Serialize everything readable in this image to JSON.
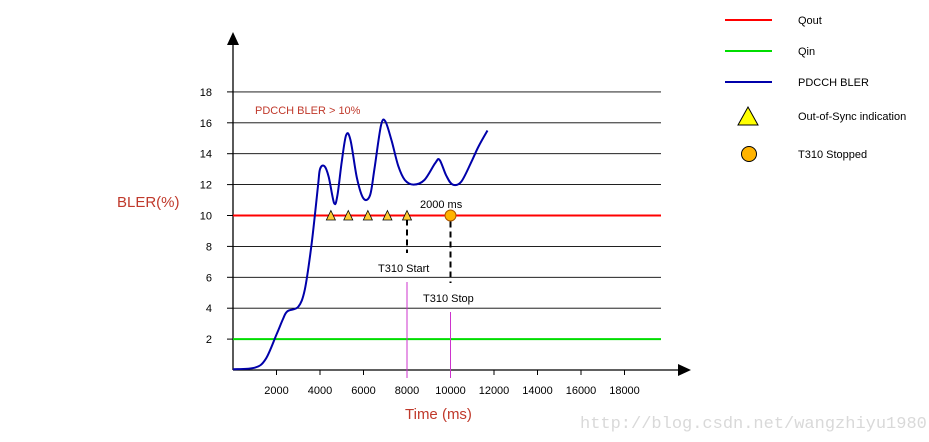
{
  "chart_data": {
    "type": "line",
    "xlabel": "Time (ms)",
    "ylabel": "BLER(%)",
    "x_ticks": [
      2000,
      4000,
      6000,
      8000,
      10000,
      12000,
      14000,
      16000,
      18000
    ],
    "y_ticks": [
      2,
      4,
      6,
      8,
      10,
      12,
      14,
      16,
      18
    ],
    "xlim": [
      0,
      19000
    ],
    "ylim": [
      0,
      19
    ],
    "grid": "horizontal",
    "series": [
      {
        "name": "Qout",
        "color": "#ff0000",
        "style": "horizontal-line",
        "y": 10
      },
      {
        "name": "Qin",
        "color": "#00dd00",
        "style": "horizontal-line",
        "y": 2
      },
      {
        "name": "PDCCH BLER",
        "color": "#0000aa",
        "style": "line",
        "points": [
          [
            0,
            0.05
          ],
          [
            1000,
            0.15
          ],
          [
            1500,
            0.7
          ],
          [
            2000,
            2.3
          ],
          [
            2300,
            3.3
          ],
          [
            2500,
            3.8
          ],
          [
            3000,
            4.1
          ],
          [
            3300,
            5.2
          ],
          [
            3600,
            8.0
          ],
          [
            3900,
            11.8
          ],
          [
            4000,
            13.0
          ],
          [
            4200,
            13.2
          ],
          [
            4400,
            12.5
          ],
          [
            4650,
            10.8
          ],
          [
            4800,
            11.3
          ],
          [
            5000,
            13.5
          ],
          [
            5200,
            15.2
          ],
          [
            5400,
            14.9
          ],
          [
            5700,
            12.4
          ],
          [
            6000,
            11.1
          ],
          [
            6300,
            11.3
          ],
          [
            6500,
            13.0
          ],
          [
            6800,
            15.8
          ],
          [
            7000,
            16.1
          ],
          [
            7300,
            14.8
          ],
          [
            7600,
            13.2
          ],
          [
            7900,
            12.3
          ],
          [
            8300,
            12.0
          ],
          [
            8800,
            12.3
          ],
          [
            9300,
            13.4
          ],
          [
            9500,
            13.6
          ],
          [
            9800,
            12.6
          ],
          [
            10100,
            12.0
          ],
          [
            10500,
            12.2
          ],
          [
            11000,
            13.6
          ],
          [
            11300,
            14.5
          ],
          [
            11700,
            15.5
          ]
        ]
      }
    ],
    "out_of_sync_indications": [
      {
        "x": 4500,
        "y": 10
      },
      {
        "x": 5300,
        "y": 10
      },
      {
        "x": 6200,
        "y": 10
      },
      {
        "x": 7100,
        "y": 10
      },
      {
        "x": 8000,
        "y": 10
      }
    ],
    "t310_stopped": [
      {
        "x": 10000,
        "y": 10
      }
    ],
    "annotations": {
      "bler_threshold": "PDCCH BLER > 10%",
      "duration": "2000 ms",
      "t310_start": "T310 Start",
      "t310_stop": "T310 Stop",
      "t310_start_x": 8000,
      "t310_stop_x": 10000
    },
    "legend": {
      "position": "top-right",
      "entries": [
        {
          "label": "Qout",
          "kind": "line",
          "color": "#ff0000"
        },
        {
          "label": "Qin",
          "kind": "line",
          "color": "#00dd00"
        },
        {
          "label": "PDCCH BLER",
          "kind": "line",
          "color": "#0000aa"
        },
        {
          "label": "Out-of-Sync indication",
          "kind": "triangle",
          "color": "#ffff00"
        },
        {
          "label": "T310 Stopped",
          "kind": "circle",
          "color": "#ffb300"
        }
      ]
    },
    "watermark": "http://blog.csdn.net/wangzhiyu1980"
  }
}
